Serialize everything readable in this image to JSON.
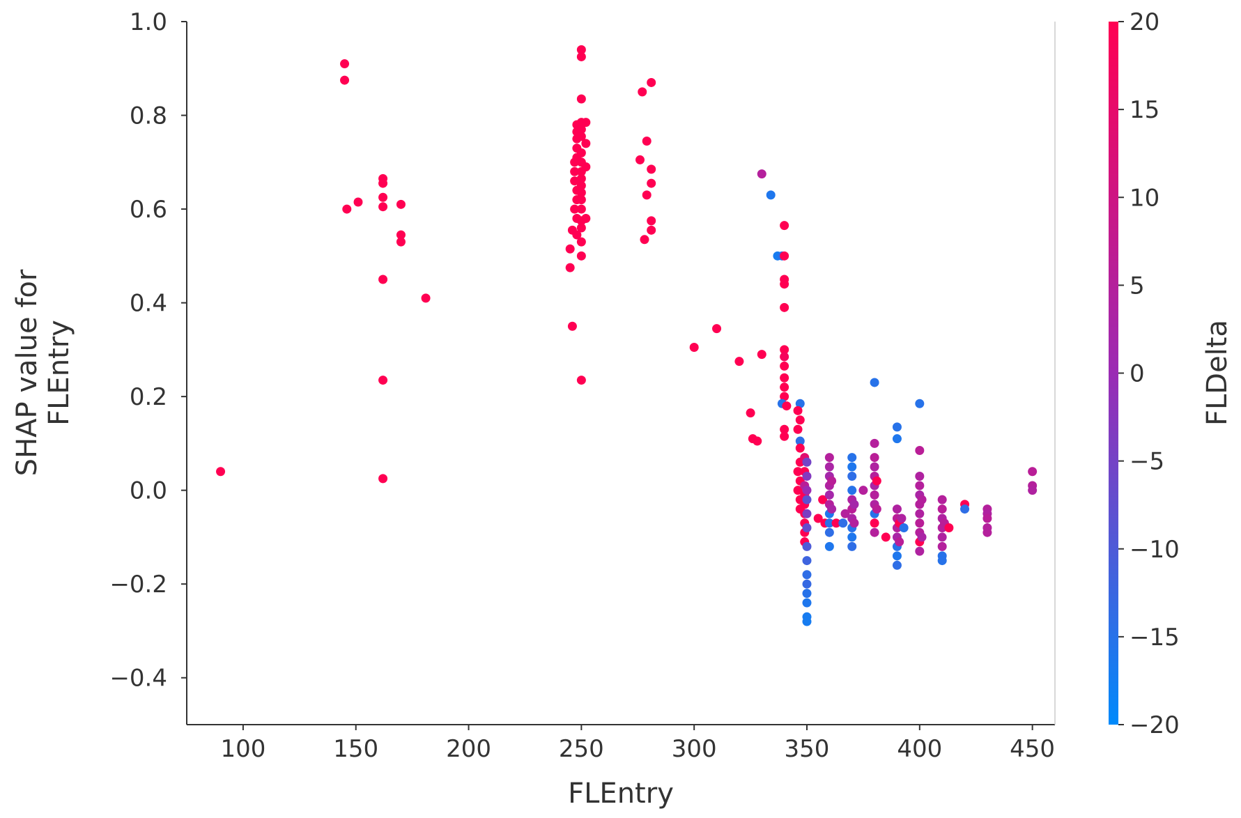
{
  "chart_data": {
    "type": "scatter",
    "xlabel": "FLEntry",
    "ylabel": "SHAP value for\nFLEntry",
    "xlim": [
      75,
      460
    ],
    "ylim": [
      -0.5,
      1.0
    ],
    "xticks": [
      100,
      150,
      200,
      250,
      300,
      350,
      400,
      450
    ],
    "yticks": [
      -0.4,
      -0.2,
      0.0,
      0.2,
      0.4,
      0.6,
      0.8,
      1.0
    ],
    "xtick_labels": [
      "100",
      "150",
      "200",
      "250",
      "300",
      "350",
      "400",
      "450"
    ],
    "ytick_labels": [
      "−0.4",
      "−0.2",
      "0.0",
      "0.2",
      "0.4",
      "0.6",
      "0.8",
      "1.0"
    ],
    "grid": false,
    "colorbar": {
      "label": "FLDelta",
      "range": [
        -20,
        20
      ],
      "ticks": [
        -20,
        -15,
        -10,
        -5,
        0,
        5,
        10,
        15,
        20
      ],
      "tick_labels": [
        "−20",
        "−15",
        "−10",
        "−5",
        "0",
        "5",
        "10",
        "15",
        "20"
      ],
      "color_low": "#008afb",
      "color_mid": "#9b2bb4",
      "color_high": "#ff0052"
    },
    "points": [
      {
        "x": 90,
        "y": 0.04,
        "c": 20
      },
      {
        "x": 145,
        "y": 0.91,
        "c": 20
      },
      {
        "x": 145,
        "y": 0.875,
        "c": 20
      },
      {
        "x": 146,
        "y": 0.6,
        "c": 20
      },
      {
        "x": 151,
        "y": 0.615,
        "c": 20
      },
      {
        "x": 162,
        "y": 0.665,
        "c": 20
      },
      {
        "x": 162,
        "y": 0.655,
        "c": 20
      },
      {
        "x": 162,
        "y": 0.625,
        "c": 20
      },
      {
        "x": 162,
        "y": 0.605,
        "c": 20
      },
      {
        "x": 162,
        "y": 0.45,
        "c": 20
      },
      {
        "x": 162,
        "y": 0.235,
        "c": 20
      },
      {
        "x": 162,
        "y": 0.025,
        "c": 20
      },
      {
        "x": 170,
        "y": 0.61,
        "c": 20
      },
      {
        "x": 170,
        "y": 0.545,
        "c": 20
      },
      {
        "x": 170,
        "y": 0.53,
        "c": 20
      },
      {
        "x": 181,
        "y": 0.41,
        "c": 20
      },
      {
        "x": 245,
        "y": 0.475,
        "c": 20
      },
      {
        "x": 245,
        "y": 0.515,
        "c": 20
      },
      {
        "x": 246,
        "y": 0.35,
        "c": 20
      },
      {
        "x": 246,
        "y": 0.555,
        "c": 20
      },
      {
        "x": 247,
        "y": 0.6,
        "c": 20
      },
      {
        "x": 247,
        "y": 0.66,
        "c": 20
      },
      {
        "x": 247,
        "y": 0.7,
        "c": 20
      },
      {
        "x": 247,
        "y": 0.68,
        "c": 20
      },
      {
        "x": 248,
        "y": 0.78,
        "c": 20
      },
      {
        "x": 248,
        "y": 0.765,
        "c": 20
      },
      {
        "x": 248,
        "y": 0.75,
        "c": 20
      },
      {
        "x": 248,
        "y": 0.73,
        "c": 20
      },
      {
        "x": 248,
        "y": 0.71,
        "c": 20
      },
      {
        "x": 248,
        "y": 0.64,
        "c": 20
      },
      {
        "x": 248,
        "y": 0.62,
        "c": 20
      },
      {
        "x": 248,
        "y": 0.58,
        "c": 20
      },
      {
        "x": 248,
        "y": 0.545,
        "c": 20
      },
      {
        "x": 250,
        "y": 0.94,
        "c": 20
      },
      {
        "x": 250,
        "y": 0.925,
        "c": 20
      },
      {
        "x": 250,
        "y": 0.835,
        "c": 20
      },
      {
        "x": 250,
        "y": 0.785,
        "c": 20
      },
      {
        "x": 250,
        "y": 0.77,
        "c": 20
      },
      {
        "x": 250,
        "y": 0.755,
        "c": 20
      },
      {
        "x": 250,
        "y": 0.72,
        "c": 20
      },
      {
        "x": 250,
        "y": 0.7,
        "c": 20
      },
      {
        "x": 250,
        "y": 0.68,
        "c": 20
      },
      {
        "x": 250,
        "y": 0.665,
        "c": 20
      },
      {
        "x": 250,
        "y": 0.65,
        "c": 20
      },
      {
        "x": 250,
        "y": 0.635,
        "c": 20
      },
      {
        "x": 250,
        "y": 0.62,
        "c": 20
      },
      {
        "x": 250,
        "y": 0.6,
        "c": 20
      },
      {
        "x": 250,
        "y": 0.575,
        "c": 20
      },
      {
        "x": 250,
        "y": 0.56,
        "c": 20
      },
      {
        "x": 250,
        "y": 0.53,
        "c": 20
      },
      {
        "x": 250,
        "y": 0.5,
        "c": 20
      },
      {
        "x": 250,
        "y": 0.235,
        "c": 20
      },
      {
        "x": 252,
        "y": 0.785,
        "c": 20
      },
      {
        "x": 252,
        "y": 0.74,
        "c": 20
      },
      {
        "x": 252,
        "y": 0.69,
        "c": 20
      },
      {
        "x": 252,
        "y": 0.58,
        "c": 20
      },
      {
        "x": 276,
        "y": 0.705,
        "c": 20
      },
      {
        "x": 277,
        "y": 0.85,
        "c": 20
      },
      {
        "x": 278,
        "y": 0.535,
        "c": 20
      },
      {
        "x": 279,
        "y": 0.745,
        "c": 20
      },
      {
        "x": 279,
        "y": 0.63,
        "c": 20
      },
      {
        "x": 281,
        "y": 0.87,
        "c": 20
      },
      {
        "x": 281,
        "y": 0.685,
        "c": 20
      },
      {
        "x": 281,
        "y": 0.655,
        "c": 20
      },
      {
        "x": 281,
        "y": 0.575,
        "c": 20
      },
      {
        "x": 281,
        "y": 0.555,
        "c": 20
      },
      {
        "x": 300,
        "y": 0.305,
        "c": 20
      },
      {
        "x": 310,
        "y": 0.345,
        "c": 20
      },
      {
        "x": 320,
        "y": 0.275,
        "c": 20
      },
      {
        "x": 325,
        "y": 0.165,
        "c": 20
      },
      {
        "x": 326,
        "y": 0.11,
        "c": 20
      },
      {
        "x": 328,
        "y": 0.105,
        "c": 20
      },
      {
        "x": 330,
        "y": 0.29,
        "c": 20
      },
      {
        "x": 330,
        "y": 0.675,
        "c": 5
      },
      {
        "x": 334,
        "y": 0.63,
        "c": -16
      },
      {
        "x": 337,
        "y": 0.5,
        "c": -17
      },
      {
        "x": 339,
        "y": 0.5,
        "c": -15
      },
      {
        "x": 340,
        "y": 0.565,
        "c": 20
      },
      {
        "x": 340,
        "y": 0.5,
        "c": 20
      },
      {
        "x": 340,
        "y": 0.45,
        "c": 20
      },
      {
        "x": 340,
        "y": 0.44,
        "c": 20
      },
      {
        "x": 340,
        "y": 0.39,
        "c": 20
      },
      {
        "x": 340,
        "y": 0.3,
        "c": 20
      },
      {
        "x": 340,
        "y": 0.285,
        "c": 18
      },
      {
        "x": 340,
        "y": 0.265,
        "c": 20
      },
      {
        "x": 340,
        "y": 0.24,
        "c": 20
      },
      {
        "x": 340,
        "y": 0.22,
        "c": 20
      },
      {
        "x": 340,
        "y": 0.2,
        "c": 20
      },
      {
        "x": 339,
        "y": 0.185,
        "c": -15
      },
      {
        "x": 340,
        "y": 0.13,
        "c": 20
      },
      {
        "x": 340,
        "y": 0.115,
        "c": 20
      },
      {
        "x": 341,
        "y": 0.18,
        "c": 20
      },
      {
        "x": 347,
        "y": 0.185,
        "c": -15
      },
      {
        "x": 346,
        "y": 0.17,
        "c": 20
      },
      {
        "x": 347,
        "y": 0.15,
        "c": 20
      },
      {
        "x": 346,
        "y": 0.13,
        "c": 20
      },
      {
        "x": 347,
        "y": 0.105,
        "c": -14
      },
      {
        "x": 347,
        "y": 0.09,
        "c": 20
      },
      {
        "x": 347,
        "y": 0.06,
        "c": 20
      },
      {
        "x": 346,
        "y": 0.04,
        "c": 20
      },
      {
        "x": 347,
        "y": 0.02,
        "c": 20
      },
      {
        "x": 346,
        "y": 0.0,
        "c": 20
      },
      {
        "x": 347,
        "y": -0.02,
        "c": 20
      },
      {
        "x": 347,
        "y": -0.04,
        "c": 20
      },
      {
        "x": 349,
        "y": 0.07,
        "c": 14
      },
      {
        "x": 349,
        "y": 0.04,
        "c": 20
      },
      {
        "x": 349,
        "y": 0.01,
        "c": 6
      },
      {
        "x": 349,
        "y": -0.01,
        "c": 20
      },
      {
        "x": 349,
        "y": -0.03,
        "c": 20
      },
      {
        "x": 349,
        "y": -0.05,
        "c": 20
      },
      {
        "x": 349,
        "y": -0.07,
        "c": 20
      },
      {
        "x": 349,
        "y": -0.09,
        "c": 20
      },
      {
        "x": 349,
        "y": -0.11,
        "c": 20
      },
      {
        "x": 350,
        "y": 0.06,
        "c": -5
      },
      {
        "x": 350,
        "y": 0.03,
        "c": -3
      },
      {
        "x": 350,
        "y": 0.0,
        "c": 0
      },
      {
        "x": 350,
        "y": -0.02,
        "c": -8
      },
      {
        "x": 350,
        "y": -0.05,
        "c": -4
      },
      {
        "x": 350,
        "y": -0.08,
        "c": -7
      },
      {
        "x": 350,
        "y": -0.12,
        "c": -10
      },
      {
        "x": 350,
        "y": -0.15,
        "c": -12
      },
      {
        "x": 350,
        "y": -0.18,
        "c": -14
      },
      {
        "x": 350,
        "y": -0.2,
        "c": -13
      },
      {
        "x": 350,
        "y": -0.22,
        "c": -15
      },
      {
        "x": 350,
        "y": -0.24,
        "c": -16
      },
      {
        "x": 350,
        "y": -0.27,
        "c": -17
      },
      {
        "x": 350,
        "y": -0.28,
        "c": -17
      },
      {
        "x": 358,
        "y": -0.07,
        "c": 20
      },
      {
        "x": 355,
        "y": -0.06,
        "c": 20
      },
      {
        "x": 357,
        "y": -0.02,
        "c": 20
      },
      {
        "x": 360,
        "y": 0.07,
        "c": 5
      },
      {
        "x": 360,
        "y": 0.05,
        "c": 3
      },
      {
        "x": 360,
        "y": 0.03,
        "c": 2
      },
      {
        "x": 360,
        "y": 0.01,
        "c": 4
      },
      {
        "x": 360,
        "y": -0.01,
        "c": 2
      },
      {
        "x": 360,
        "y": -0.03,
        "c": 5
      },
      {
        "x": 360,
        "y": -0.05,
        "c": -16
      },
      {
        "x": 360,
        "y": -0.07,
        "c": -15
      },
      {
        "x": 360,
        "y": -0.09,
        "c": -14
      },
      {
        "x": 360,
        "y": -0.12,
        "c": -16
      },
      {
        "x": 361,
        "y": 0.02,
        "c": 6
      },
      {
        "x": 361,
        "y": -0.04,
        "c": 3
      },
      {
        "x": 363,
        "y": -0.07,
        "c": 20
      },
      {
        "x": 366,
        "y": -0.07,
        "c": -14
      },
      {
        "x": 367,
        "y": -0.05,
        "c": 5
      },
      {
        "x": 370,
        "y": 0.07,
        "c": -15
      },
      {
        "x": 370,
        "y": 0.05,
        "c": -16
      },
      {
        "x": 370,
        "y": 0.03,
        "c": -14
      },
      {
        "x": 370,
        "y": 0.0,
        "c": -15
      },
      {
        "x": 370,
        "y": -0.02,
        "c": 4
      },
      {
        "x": 370,
        "y": -0.04,
        "c": 6
      },
      {
        "x": 370,
        "y": -0.06,
        "c": 3
      },
      {
        "x": 370,
        "y": -0.08,
        "c": -15
      },
      {
        "x": 370,
        "y": -0.1,
        "c": -16
      },
      {
        "x": 370,
        "y": -0.12,
        "c": -14
      },
      {
        "x": 371,
        "y": -0.03,
        "c": 2
      },
      {
        "x": 371,
        "y": -0.07,
        "c": 5
      },
      {
        "x": 375,
        "y": 0.0,
        "c": 5
      },
      {
        "x": 380,
        "y": 0.23,
        "c": -15
      },
      {
        "x": 380,
        "y": 0.1,
        "c": 5
      },
      {
        "x": 380,
        "y": 0.07,
        "c": 6
      },
      {
        "x": 380,
        "y": 0.05,
        "c": 4
      },
      {
        "x": 380,
        "y": 0.03,
        "c": 5
      },
      {
        "x": 380,
        "y": 0.01,
        "c": 3
      },
      {
        "x": 380,
        "y": -0.01,
        "c": 5
      },
      {
        "x": 380,
        "y": -0.03,
        "c": 4
      },
      {
        "x": 380,
        "y": -0.05,
        "c": -15
      },
      {
        "x": 380,
        "y": -0.07,
        "c": 20
      },
      {
        "x": 380,
        "y": -0.09,
        "c": 5
      },
      {
        "x": 381,
        "y": 0.02,
        "c": 20
      },
      {
        "x": 381,
        "y": -0.04,
        "c": 6
      },
      {
        "x": 385,
        "y": -0.1,
        "c": 20
      },
      {
        "x": 390,
        "y": 0.135,
        "c": -15
      },
      {
        "x": 390,
        "y": 0.11,
        "c": -16
      },
      {
        "x": 390,
        "y": -0.04,
        "c": 4
      },
      {
        "x": 390,
        "y": -0.06,
        "c": 6
      },
      {
        "x": 390,
        "y": -0.08,
        "c": 5
      },
      {
        "x": 390,
        "y": -0.1,
        "c": 3
      },
      {
        "x": 390,
        "y": -0.12,
        "c": -15
      },
      {
        "x": 390,
        "y": -0.14,
        "c": -16
      },
      {
        "x": 390,
        "y": -0.16,
        "c": -14
      },
      {
        "x": 391,
        "y": -0.07,
        "c": 20
      },
      {
        "x": 391,
        "y": -0.11,
        "c": 6
      },
      {
        "x": 392,
        "y": -0.06,
        "c": 4
      },
      {
        "x": 393,
        "y": -0.08,
        "c": -15
      },
      {
        "x": 400,
        "y": 0.185,
        "c": -15
      },
      {
        "x": 400,
        "y": 0.085,
        "c": 6
      },
      {
        "x": 400,
        "y": 0.03,
        "c": 4
      },
      {
        "x": 400,
        "y": 0.01,
        "c": 5
      },
      {
        "x": 400,
        "y": -0.01,
        "c": 3
      },
      {
        "x": 400,
        "y": -0.03,
        "c": 5
      },
      {
        "x": 400,
        "y": -0.05,
        "c": 4
      },
      {
        "x": 400,
        "y": -0.07,
        "c": 6
      },
      {
        "x": 400,
        "y": -0.09,
        "c": 5
      },
      {
        "x": 400,
        "y": -0.11,
        "c": 20
      },
      {
        "x": 400,
        "y": -0.13,
        "c": 4
      },
      {
        "x": 401,
        "y": -0.02,
        "c": 5
      },
      {
        "x": 401,
        "y": -0.1,
        "c": 3
      },
      {
        "x": 410,
        "y": -0.02,
        "c": 5
      },
      {
        "x": 410,
        "y": -0.04,
        "c": 6
      },
      {
        "x": 410,
        "y": -0.06,
        "c": 4
      },
      {
        "x": 410,
        "y": -0.08,
        "c": 5
      },
      {
        "x": 410,
        "y": -0.1,
        "c": 4
      },
      {
        "x": 410,
        "y": -0.12,
        "c": 5
      },
      {
        "x": 410,
        "y": -0.14,
        "c": -15
      },
      {
        "x": 410,
        "y": -0.15,
        "c": -15
      },
      {
        "x": 411,
        "y": -0.07,
        "c": 6
      },
      {
        "x": 413,
        "y": -0.08,
        "c": 20
      },
      {
        "x": 420,
        "y": -0.03,
        "c": 20
      },
      {
        "x": 420,
        "y": -0.04,
        "c": -14
      },
      {
        "x": 430,
        "y": -0.04,
        "c": 5
      },
      {
        "x": 430,
        "y": -0.05,
        "c": 4
      },
      {
        "x": 430,
        "y": -0.06,
        "c": 6
      },
      {
        "x": 430,
        "y": -0.08,
        "c": 5
      },
      {
        "x": 430,
        "y": -0.09,
        "c": 5
      },
      {
        "x": 450,
        "y": 0.04,
        "c": 6
      },
      {
        "x": 450,
        "y": 0.01,
        "c": 5
      },
      {
        "x": 450,
        "y": 0.0,
        "c": 4
      }
    ]
  }
}
